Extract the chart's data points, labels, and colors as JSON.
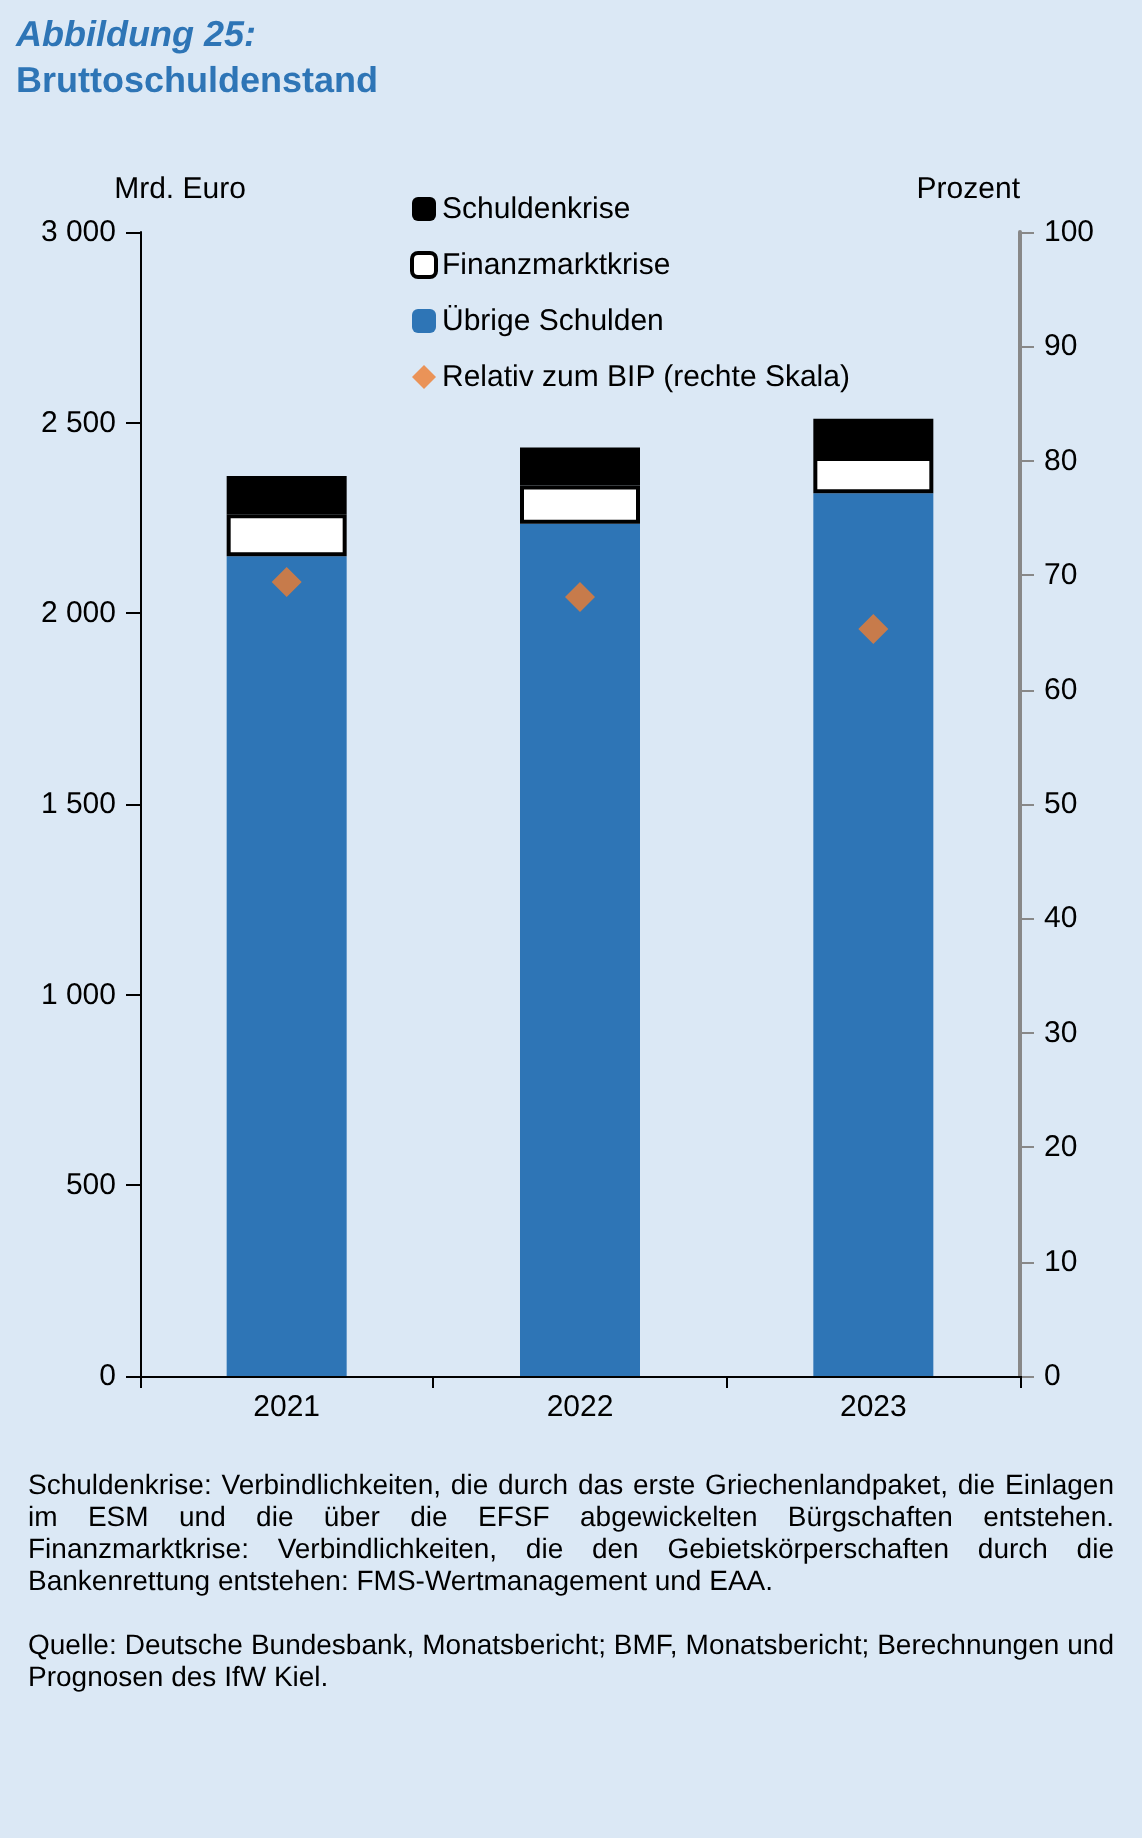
{
  "chart_data": {
    "type": "bar",
    "title": "Abbildung 25:",
    "subtitle": "Bruttoschuldenstand",
    "ylabel": "Mrd. Euro",
    "y2label": "Prozent",
    "categories": [
      "2021",
      "2022",
      "2023"
    ],
    "stacked": true,
    "series": [
      {
        "name": "Übrige Schulden",
        "color": "#2e75b6",
        "values": [
          2150,
          2235,
          2315
        ]
      },
      {
        "name": "Finanzmarktkrise",
        "color": "#ffffff",
        "values": [
          110,
          100,
          95
        ]
      },
      {
        "name": "Schuldenkrise",
        "color": "#000000",
        "values": [
          100,
          100,
          100
        ]
      },
      {
        "name": "Relativ zum BIP (rechte Skala)",
        "type": "scatter",
        "axis": "y2",
        "marker": "diamond",
        "color": "#ed7d31",
        "values": [
          69.4,
          68.1,
          65.3
        ]
      }
    ],
    "ylim": [
      0,
      3000
    ],
    "yticks": [
      0,
      500,
      {
        "value": 1000,
        "label": "1 000"
      },
      {
        "value": 1500,
        "label": "1 500"
      },
      {
        "value": 2000,
        "label": "2 000"
      },
      {
        "value": 2500,
        "label": "2 500"
      },
      {
        "value": 3000,
        "label": "3 000"
      }
    ],
    "y2lim": [
      0,
      100
    ],
    "y2ticks": [
      0,
      10,
      20,
      30,
      40,
      50,
      60,
      70,
      80,
      90,
      100
    ],
    "legend": "top right",
    "grid": false,
    "annotations": [
      "Schuldenkrise: Verbindlichkeiten, die durch das erste Griechenlandpaket, die Einlagen im ESM und die über die EFSF abgewickelten Bürgschaften entstehen. Finanzmarktkrise: Verbindlichkeiten, die den Gebietskörperschaften durch die Bankenrettung entstehen: FMS-Wertmanagement und  EAA.",
      "Quelle: Deutsche Bundesbank, Monatsbericht; BMF, Monatsbericht; Berechnungen und Prognosen des IfW Kiel."
    ]
  }
}
